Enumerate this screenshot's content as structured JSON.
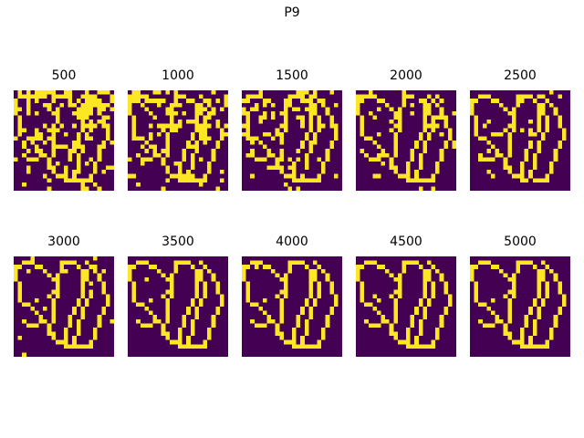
{
  "figure": {
    "title": "P9"
  },
  "colors": {
    "background": "#440154",
    "foreground": "#fde725"
  },
  "chart_data": {
    "type": "heatmap",
    "grid_size": [
      24,
      24
    ],
    "colormap": "viridis",
    "binary": true,
    "panels": [
      {
        "title": "500",
        "iteration": 500,
        "noise_density": 0.38
      },
      {
        "title": "1000",
        "iteration": 1000,
        "noise_density": 0.32
      },
      {
        "title": "1500",
        "iteration": 1500,
        "noise_density": 0.22
      },
      {
        "title": "2000",
        "iteration": 2000,
        "noise_density": 0.1
      },
      {
        "title": "2500",
        "iteration": 2500,
        "noise_density": 0.06
      },
      {
        "title": "3000",
        "iteration": 3000,
        "noise_density": 0.03
      },
      {
        "title": "3500",
        "iteration": 3500,
        "noise_density": 0.02
      },
      {
        "title": "4000",
        "iteration": 4000,
        "noise_density": 0.01
      },
      {
        "title": "4500",
        "iteration": 4500,
        "noise_density": 0.005
      },
      {
        "title": "5000",
        "iteration": 5000,
        "noise_density": 0.0
      }
    ]
  }
}
